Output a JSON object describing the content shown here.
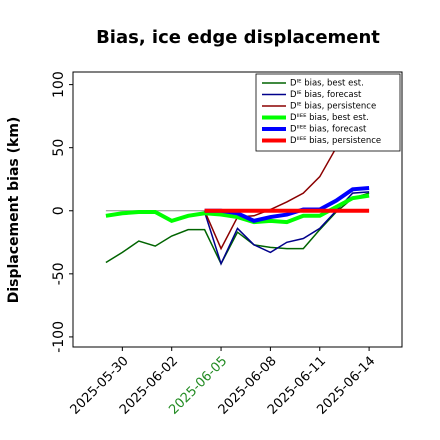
{
  "chart_data": {
    "type": "line",
    "title": "Bias, ice edge displacement",
    "y_label": "Displacement bias (km)",
    "x": [
      "2025-05-29",
      "2025-05-30",
      "2025-05-31",
      "2025-06-01",
      "2025-06-02",
      "2025-06-03",
      "2025-06-04",
      "2025-06-05",
      "2025-06-06",
      "2025-06-07",
      "2025-06-08",
      "2025-06-09",
      "2025-06-10",
      "2025-06-11",
      "2025-06-12",
      "2025-06-13",
      "2025-06-14"
    ],
    "series": [
      {
        "name": "Dᴵᴱ bias, best est.",
        "color": "#006400",
        "width": 1.5,
        "values": [
          -41,
          -33,
          -24,
          -28,
          -20,
          -15,
          -15,
          -42,
          -17,
          -27,
          -29,
          -30,
          -30,
          -15,
          -1,
          10,
          14
        ]
      },
      {
        "name": "Dᴵᴱ bias, forecast",
        "color": "#00008b",
        "width": 1.5,
        "values": [
          null,
          null,
          null,
          null,
          null,
          null,
          -1,
          -42,
          -14,
          -27,
          -33,
          -25,
          -22,
          -14,
          0,
          14,
          15
        ]
      },
      {
        "name": "Dᴵᴱ bias, persistence",
        "color": "#8b0000",
        "width": 1.5,
        "values": [
          null,
          null,
          null,
          null,
          null,
          null,
          0,
          -30,
          -5,
          -4,
          1,
          7,
          14,
          27,
          50,
          78,
          95
        ]
      },
      {
        "name": "Dᴵᴵᴱᴱ bias, best est.",
        "color": "#00ff00",
        "width": 4,
        "values": [
          -4,
          -2,
          -1,
          -1,
          -8,
          -4,
          -2,
          -3,
          -5,
          -9,
          -8,
          -9,
          -4,
          -4,
          3,
          10,
          12
        ]
      },
      {
        "name": "Dᴵᴵᴱᴱ bias, forecast",
        "color": "#0000ff",
        "width": 4,
        "values": [
          null,
          null,
          null,
          null,
          null,
          null,
          0,
          0,
          -2,
          -8,
          -5,
          -3,
          1,
          1,
          8,
          17,
          18
        ]
      },
      {
        "name": "Dᴵᴵᴱᴱ bias, persistence",
        "color": "#ff0000",
        "width": 4,
        "values": [
          null,
          null,
          null,
          null,
          null,
          null,
          0,
          0,
          0,
          0,
          0,
          0,
          0,
          0,
          0,
          0,
          0
        ]
      }
    ],
    "hline": {
      "value": 0,
      "color": "#888888"
    },
    "xlim": [
      "2025-05-27",
      "2025-06-16"
    ],
    "xticks": [
      "2025-05-30",
      "2025-06-02",
      "2025-06-05",
      "2025-06-08",
      "2025-06-11",
      "2025-06-14"
    ],
    "xtick_colors": [
      "#000000",
      "#000000",
      "#228b22",
      "#000000",
      "#000000",
      "#000000"
    ],
    "ylim": [
      -108,
      110
    ],
    "yticks": [
      -100,
      -50,
      0,
      50,
      100
    ],
    "legend": "upper right"
  }
}
